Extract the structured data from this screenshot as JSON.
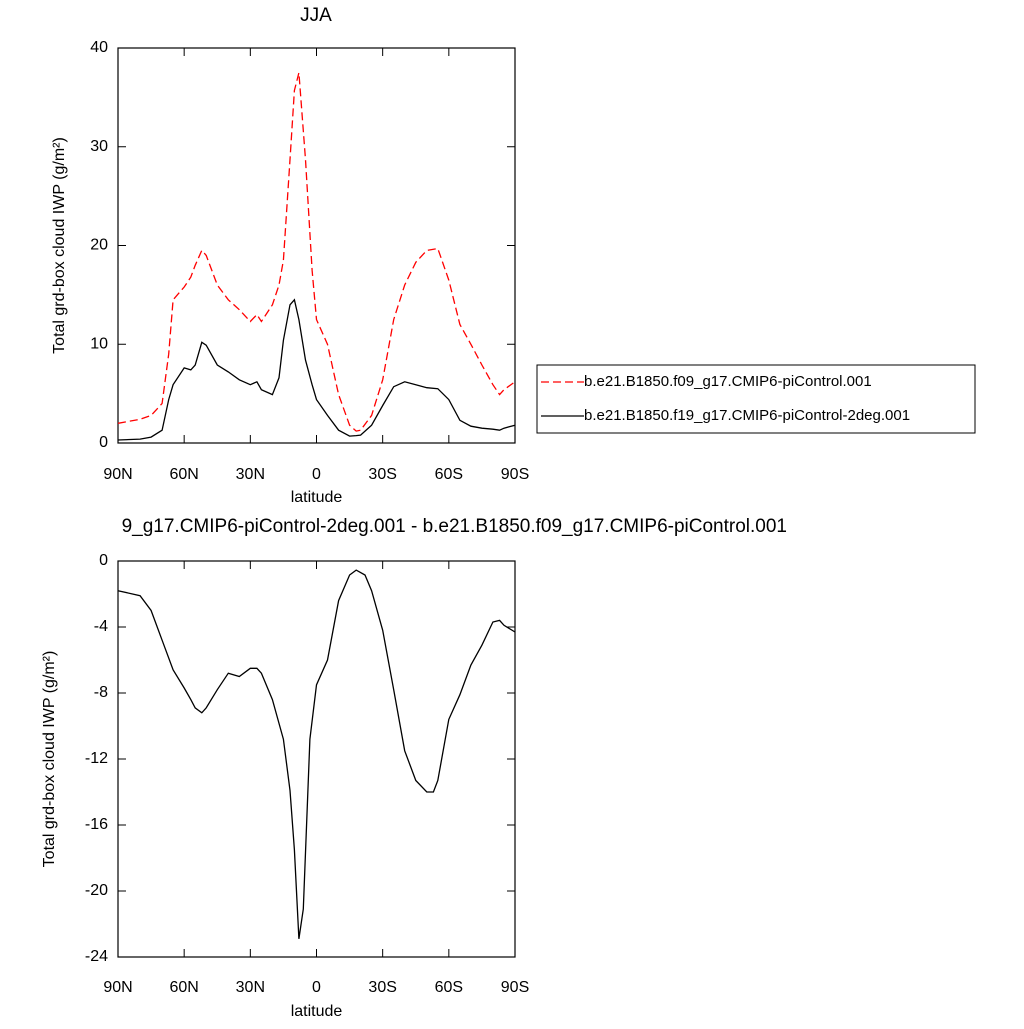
{
  "chart_data": [
    {
      "type": "line",
      "title": "JJA",
      "xlabel": "latitude",
      "ylabel": "Total grd-box cloud IWP (g/m²)",
      "x": [
        90,
        80,
        75,
        70,
        67,
        65,
        60,
        57,
        55,
        52,
        50,
        45,
        40,
        35,
        30,
        27,
        25,
        20,
        17,
        15,
        12,
        10,
        8,
        5,
        2,
        0,
        -5,
        -10,
        -15,
        -18,
        -20,
        -25,
        -30,
        -35,
        -40,
        -45,
        -50,
        -55,
        -60,
        -65,
        -70,
        -75,
        -80,
        -83,
        -85,
        -90
      ],
      "xlim": [
        90,
        -90
      ],
      "xticks": [
        {
          "value": 90,
          "label": "90N"
        },
        {
          "value": 60,
          "label": "60N"
        },
        {
          "value": 30,
          "label": "30N"
        },
        0,
        {
          "value": -30,
          "label": "30S"
        },
        {
          "value": -60,
          "label": "60S"
        },
        {
          "value": -90,
          "label": "90S"
        }
      ],
      "ylim": [
        0,
        40
      ],
      "yticks": [
        0,
        10,
        20,
        30,
        40
      ],
      "legend": "right",
      "series": [
        {
          "name": "b.e21.B1850.f09_g17.CMIP6-piControl.001",
          "color": "#ff0000",
          "line_style": "dashed",
          "values": [
            2.0,
            2.4,
            2.8,
            4.0,
            9,
            14.5,
            15.8,
            16.8,
            18,
            19.5,
            19,
            16,
            14.5,
            13.5,
            12.3,
            13,
            12.3,
            14,
            16,
            18.5,
            28.7,
            35.7,
            37.5,
            28.7,
            17.5,
            12.5,
            10,
            4.9,
            1.8,
            1.2,
            1.3,
            2.8,
            6.4,
            12.5,
            16,
            18.3,
            19.5,
            19.7,
            16.5,
            12,
            10,
            7.9,
            5.9,
            4.9,
            5.4,
            6.2
          ]
        },
        {
          "name": "b.e21.B1850.f19_g17.CMIP6-piControl-2deg.001",
          "color": "#000000",
          "line_style": "solid",
          "values": [
            0.3,
            0.4,
            0.6,
            1.3,
            4.4,
            5.9,
            7.6,
            7.4,
            7.9,
            10.2,
            9.9,
            7.9,
            7.2,
            6.4,
            5.9,
            6.2,
            5.4,
            4.9,
            6.6,
            10.4,
            14,
            14.5,
            12.5,
            8.4,
            5.9,
            4.4,
            2.8,
            1.3,
            0.7,
            0.75,
            0.8,
            1.8,
            3.8,
            5.7,
            6.2,
            5.9,
            5.6,
            5.5,
            4.4,
            2.3,
            1.7,
            1.5,
            1.4,
            1.3,
            1.5,
            1.8
          ]
        }
      ]
    },
    {
      "type": "line",
      "title": "9_g17.CMIP6-piControl-2deg.001 - b.e21.B1850.f09_g17.CMIP6-piControl.001",
      "xlabel": "latitude",
      "ylabel": "Total grd-box cloud IWP (g/m²)",
      "x": [
        90,
        80,
        75,
        70,
        65,
        60,
        57,
        55,
        52,
        50,
        45,
        40,
        35,
        30,
        27,
        25,
        20,
        15,
        12,
        10,
        8,
        6,
        3,
        0,
        -5,
        -10,
        -15,
        -18,
        -22,
        -25,
        -30,
        -35,
        -40,
        -45,
        -50,
        -53,
        -55,
        -60,
        -65,
        -70,
        -75,
        -80,
        -83,
        -85,
        -90
      ],
      "xlim": [
        90,
        -90
      ],
      "xticks": [
        {
          "value": 90,
          "label": "90N"
        },
        {
          "value": 60,
          "label": "60N"
        },
        {
          "value": 30,
          "label": "30N"
        },
        0,
        {
          "value": -30,
          "label": "30S"
        },
        {
          "value": -60,
          "label": "60S"
        },
        {
          "value": -90,
          "label": "90S"
        }
      ],
      "ylim": [
        -24,
        0
      ],
      "yticks": [
        -24,
        -20,
        -16,
        -12,
        -8,
        -4,
        0
      ],
      "series": [
        {
          "color": "#000000",
          "line_style": "solid",
          "values": [
            -1.8,
            -2.1,
            -3.0,
            -4.8,
            -6.6,
            -7.7,
            -8.4,
            -8.9,
            -9.2,
            -8.9,
            -7.8,
            -6.8,
            -7.0,
            -6.5,
            -6.5,
            -6.8,
            -8.4,
            -10.8,
            -13.9,
            -17.5,
            -22.9,
            -21.1,
            -10.8,
            -7.5,
            -6.0,
            -2.4,
            -0.85,
            -0.55,
            -0.85,
            -1.8,
            -4.2,
            -7.8,
            -11.5,
            -13.3,
            -14.0,
            -14.0,
            -13.3,
            -9.6,
            -8.1,
            -6.3,
            -5.1,
            -3.7,
            -3.6,
            -3.9,
            -4.3
          ]
        }
      ]
    }
  ]
}
